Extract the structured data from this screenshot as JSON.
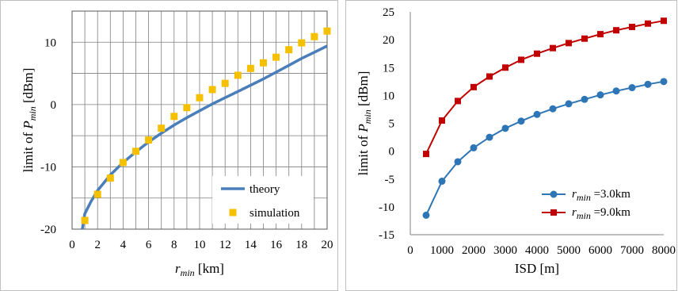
{
  "colors": {
    "theory": "#4A7EBB",
    "simulation": "#F5C000",
    "series_blue": "#2E75B6",
    "series_red": "#C00000",
    "grid": "#7F7F7F"
  },
  "chart_data": [
    {
      "type": "scatter",
      "xlabel": {
        "base": "r",
        "sub": "min",
        "unit": " [km]"
      },
      "ylabel": {
        "prefix": "limit of ",
        "base": "P",
        "sub": "min",
        "unit": " [dBm]"
      },
      "xlim": [
        0,
        20
      ],
      "ylim": [
        -20,
        15
      ],
      "x_ticks": [
        0,
        2,
        4,
        6,
        8,
        10,
        12,
        14,
        16,
        18,
        20
      ],
      "y_ticks": [
        -20,
        -10,
        0,
        10
      ],
      "grid": true,
      "legend_position": "bottom-right",
      "series": [
        {
          "name": "theory",
          "style": "line",
          "x": [
            0.8,
            1,
            1.5,
            2,
            3,
            4,
            5,
            6,
            7,
            8,
            9,
            10,
            11,
            12,
            13,
            14,
            15,
            16,
            17,
            18,
            19,
            20
          ],
          "y": [
            -20,
            -17.5,
            -15.5,
            -13.8,
            -11.3,
            -9.3,
            -7.6,
            -6.0,
            -4.6,
            -3.3,
            -2.1,
            -1.0,
            0.1,
            1.1,
            2.1,
            3.1,
            4.1,
            5.2,
            6.3,
            7.4,
            8.4,
            9.4
          ]
        },
        {
          "name": "simulation",
          "style": "square-markers",
          "x": [
            1,
            2,
            3,
            4,
            5,
            6,
            7,
            8,
            9,
            10,
            11,
            12,
            13,
            14,
            15,
            16,
            17,
            18,
            19,
            20
          ],
          "y": [
            -18.6,
            -14.4,
            -11.8,
            -9.3,
            -7.5,
            -5.7,
            -3.8,
            -1.9,
            -0.5,
            1.1,
            2.4,
            3.4,
            4.7,
            5.8,
            6.7,
            7.6,
            8.8,
            9.9,
            10.9,
            11.8
          ]
        }
      ]
    },
    {
      "type": "line",
      "xlabel": "ISD [m]",
      "ylabel": {
        "prefix": "limit of ",
        "base": "P",
        "sub": "min",
        "unit": " [dBm]"
      },
      "xlim": [
        0,
        8000
      ],
      "ylim": [
        -15,
        25
      ],
      "x_ticks": [
        0,
        1000,
        2000,
        3000,
        4000,
        5000,
        6000,
        7000,
        8000
      ],
      "y_ticks": [
        -15,
        -10,
        -5,
        0,
        5,
        10,
        15,
        20,
        25
      ],
      "grid": false,
      "legend_position": "bottom-right",
      "x": [
        500,
        1000,
        1500,
        2000,
        2500,
        3000,
        3500,
        4000,
        4500,
        5000,
        5500,
        6000,
        6500,
        7000,
        7500,
        8000
      ],
      "series": [
        {
          "name": {
            "base": "r",
            "sub": "min",
            "value": " =3.0km"
          },
          "marker": "circle",
          "values": [
            -11.5,
            -5.4,
            -1.9,
            0.6,
            2.5,
            4.1,
            5.4,
            6.6,
            7.6,
            8.5,
            9.3,
            10.1,
            10.8,
            11.4,
            12.0,
            12.5
          ]
        },
        {
          "name": {
            "base": "r",
            "sub": "min",
            "value": " =9.0km"
          },
          "marker": "square",
          "values": [
            -0.5,
            5.5,
            9.0,
            11.5,
            13.4,
            15.0,
            16.4,
            17.5,
            18.5,
            19.4,
            20.2,
            21.0,
            21.7,
            22.3,
            22.9,
            23.4
          ]
        }
      ]
    }
  ]
}
